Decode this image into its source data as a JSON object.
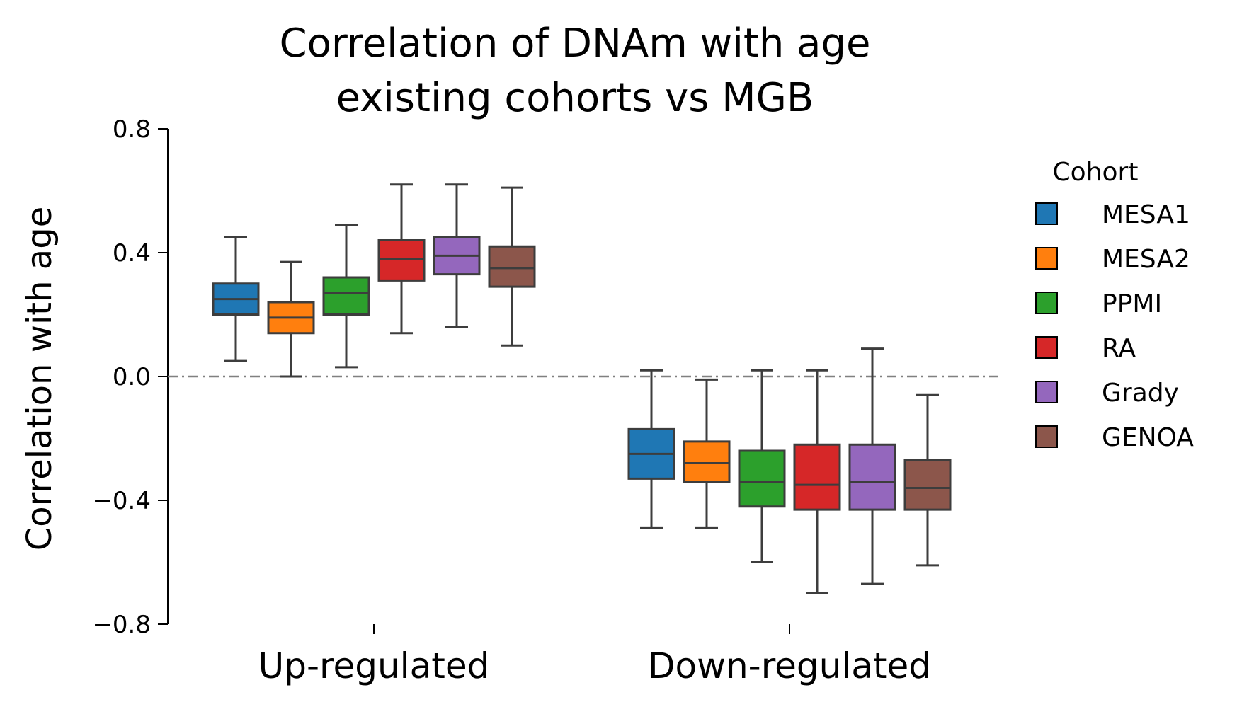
{
  "chart_data": {
    "type": "box",
    "title": [
      "Correlation of DNAm with age",
      "existing cohorts vs MGB"
    ],
    "xlabel": "",
    "ylabel": "Correlation with age",
    "ylim": [
      -0.8,
      0.8
    ],
    "yticks": [
      0.8,
      0.4,
      0.0,
      -0.4,
      -0.8
    ],
    "ytick_labels": [
      "0.8",
      "0.4",
      "0.0",
      "−0.4",
      "−0.8"
    ],
    "categories": [
      "Up-regulated",
      "Down-regulated"
    ],
    "reference_line": {
      "y": 0.0,
      "style": "dash-dot",
      "color": "#808080"
    },
    "legend": {
      "title": "Cohort",
      "placement": "right"
    },
    "grid": false,
    "series": [
      {
        "name": "MESA1",
        "color": "#1f77b4",
        "boxes": [
          {
            "whisker_low": 0.05,
            "q1": 0.2,
            "median": 0.25,
            "q3": 0.3,
            "whisker_high": 0.45
          },
          {
            "whisker_low": -0.49,
            "q1": -0.33,
            "median": -0.25,
            "q3": -0.17,
            "whisker_high": 0.02
          }
        ]
      },
      {
        "name": "MESA2",
        "color": "#ff7f0e",
        "boxes": [
          {
            "whisker_low": 0.0,
            "q1": 0.14,
            "median": 0.19,
            "q3": 0.24,
            "whisker_high": 0.37
          },
          {
            "whisker_low": -0.49,
            "q1": -0.34,
            "median": -0.28,
            "q3": -0.21,
            "whisker_high": -0.01
          }
        ]
      },
      {
        "name": "PPMI",
        "color": "#2ca02c",
        "boxes": [
          {
            "whisker_low": 0.03,
            "q1": 0.2,
            "median": 0.27,
            "q3": 0.32,
            "whisker_high": 0.49
          },
          {
            "whisker_low": -0.6,
            "q1": -0.42,
            "median": -0.34,
            "q3": -0.24,
            "whisker_high": 0.02
          }
        ]
      },
      {
        "name": "RA",
        "color": "#d62728",
        "boxes": [
          {
            "whisker_low": 0.14,
            "q1": 0.31,
            "median": 0.38,
            "q3": 0.44,
            "whisker_high": 0.62
          },
          {
            "whisker_low": -0.7,
            "q1": -0.43,
            "median": -0.35,
            "q3": -0.22,
            "whisker_high": 0.02
          }
        ]
      },
      {
        "name": "Grady",
        "color": "#9467bd",
        "boxes": [
          {
            "whisker_low": 0.16,
            "q1": 0.33,
            "median": 0.39,
            "q3": 0.45,
            "whisker_high": 0.62
          },
          {
            "whisker_low": -0.67,
            "q1": -0.43,
            "median": -0.34,
            "q3": -0.22,
            "whisker_high": 0.09
          }
        ]
      },
      {
        "name": "GENOA",
        "color": "#8c564b",
        "boxes": [
          {
            "whisker_low": 0.1,
            "q1": 0.29,
            "median": 0.35,
            "q3": 0.42,
            "whisker_high": 0.61
          },
          {
            "whisker_low": -0.61,
            "q1": -0.43,
            "median": -0.36,
            "q3": -0.27,
            "whisker_high": -0.06
          }
        ]
      }
    ]
  }
}
